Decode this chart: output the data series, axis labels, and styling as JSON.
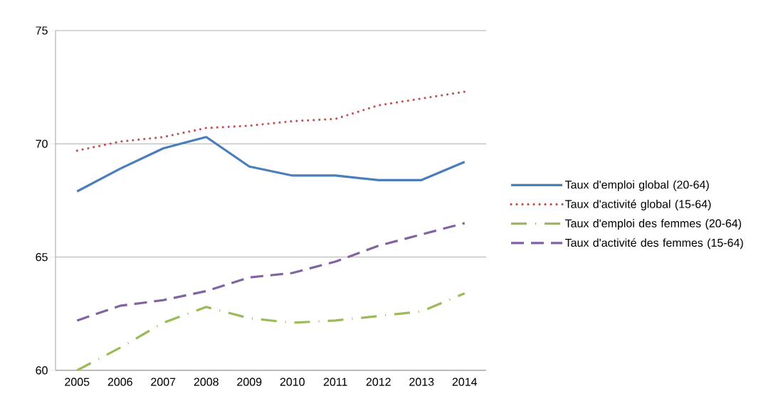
{
  "chart_data": {
    "type": "line",
    "categories": [
      "2005",
      "2006",
      "2007",
      "2008",
      "2009",
      "2010",
      "2011",
      "2012",
      "2013",
      "2014"
    ],
    "series": [
      {
        "name": "Taux d'emploi global (20-64)",
        "color": "#4a7ebb",
        "line_style": "solid",
        "values": [
          67.9,
          68.9,
          69.8,
          70.3,
          69.0,
          68.6,
          68.6,
          68.4,
          68.4,
          69.2
        ]
      },
      {
        "name": "Taux d'activité global (15-64)",
        "color": "#c0504d",
        "line_style": "dotted",
        "values": [
          69.7,
          70.1,
          70.3,
          70.7,
          70.8,
          71.0,
          71.1,
          71.7,
          72.0,
          72.3
        ]
      },
      {
        "name": "Taux d'emploi des femmes (20-64)",
        "color": "#9bbb59",
        "line_style": "dashdot",
        "values": [
          60.0,
          61.0,
          62.1,
          62.8,
          62.3,
          62.1,
          62.2,
          62.4,
          62.6,
          63.4
        ]
      },
      {
        "name": "Taux d'activité des femmes (15-64)",
        "color": "#8064a2",
        "line_style": "dashed",
        "values": [
          62.2,
          62.85,
          63.1,
          63.5,
          64.1,
          64.3,
          64.8,
          65.5,
          66.0,
          66.5
        ]
      }
    ],
    "ylim": [
      60,
      75
    ],
    "yticks": [
      60,
      65,
      70,
      75
    ],
    "grid": "y",
    "legend": "right",
    "marker": "none"
  }
}
